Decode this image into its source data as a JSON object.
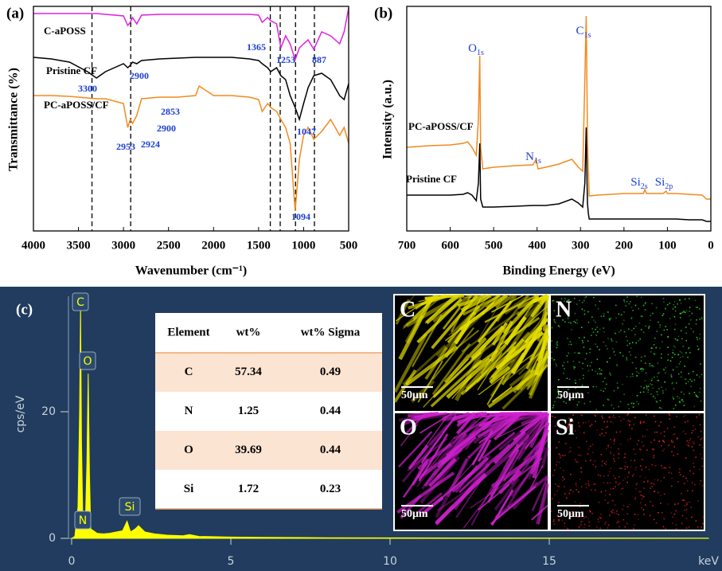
{
  "chart_data": [
    {
      "type": "line",
      "panel": "(a)",
      "xlabel": "Wavenumber (cm⁻¹)",
      "ylabel": "Transmittance (%)",
      "xlim": [
        4000,
        500
      ],
      "xticks": [
        4000,
        3500,
        3000,
        2500,
        2000,
        1500,
        1000,
        500
      ],
      "ylim": [
        0,
        282
      ],
      "vlines": [
        3350,
        2920,
        1370,
        1260,
        1090,
        880
      ],
      "series": [
        {
          "name": "C-aPOSS",
          "color": "#e020e0",
          "x": [
            4000,
            3800,
            3600,
            3400,
            3300,
            3200,
            3000,
            2953,
            2924,
            2900,
            2853,
            2800,
            2600,
            2400,
            2200,
            2160,
            2000,
            1800,
            1600,
            1500,
            1460,
            1400,
            1365,
            1300,
            1253,
            1200,
            1150,
            1094,
            1047,
            1000,
            950,
            887,
            800,
            700,
            600,
            550,
            500
          ],
          "values": [
            273,
            273,
            273,
            273,
            273,
            272,
            270,
            258,
            262,
            268,
            260,
            271,
            272,
            272,
            272,
            272,
            272,
            272,
            272,
            271,
            262,
            268,
            264,
            260,
            230,
            245,
            235,
            215,
            230,
            235,
            240,
            228,
            250,
            245,
            235,
            250,
            280
          ]
        },
        {
          "name": "Pristine CF",
          "color": "#000000",
          "x": [
            4000,
            3800,
            3600,
            3400,
            3300,
            3200,
            3000,
            2953,
            2924,
            2900,
            2853,
            2800,
            2600,
            2400,
            2200,
            2160,
            2000,
            1800,
            1600,
            1500,
            1460,
            1400,
            1365,
            1300,
            1253,
            1200,
            1150,
            1094,
            1047,
            1000,
            950,
            887,
            800,
            700,
            600,
            550,
            500
          ],
          "values": [
            218,
            216,
            212,
            200,
            192,
            200,
            210,
            205,
            208,
            212,
            210,
            214,
            216,
            217,
            218,
            218,
            218,
            218,
            216,
            214,
            210,
            205,
            200,
            205,
            195,
            190,
            170,
            155,
            140,
            160,
            180,
            195,
            198,
            190,
            170,
            165,
            185
          ]
        },
        {
          "name": "PC-aPOSS/CF",
          "color": "#f28a1e",
          "x": [
            4000,
            3800,
            3600,
            3400,
            3300,
            3200,
            3000,
            2953,
            2924,
            2900,
            2853,
            2800,
            2600,
            2400,
            2200,
            2160,
            2000,
            1800,
            1600,
            1500,
            1460,
            1400,
            1365,
            1300,
            1253,
            1200,
            1150,
            1094,
            1047,
            1000,
            950,
            887,
            800,
            700,
            600,
            550,
            500
          ],
          "values": [
            170,
            170,
            169,
            167,
            166,
            166,
            160,
            130,
            140,
            135,
            145,
            166,
            168,
            168,
            170,
            182,
            170,
            170,
            168,
            165,
            150,
            160,
            155,
            150,
            140,
            130,
            110,
            25,
            90,
            120,
            130,
            115,
            125,
            140,
            120,
            130,
            110
          ]
        }
      ],
      "annotations": [
        "3300",
        "2900",
        "1365",
        "1253",
        "887",
        "1047",
        "2853",
        "2900",
        "2953",
        "2924",
        "1094"
      ]
    },
    {
      "type": "line",
      "panel": "(b)",
      "xlabel": "Binding Energy (eV)",
      "ylabel": "Intensity (a.u.)",
      "xlim": [
        700,
        0
      ],
      "xticks": [
        700,
        600,
        500,
        400,
        300,
        200,
        100,
        0
      ],
      "ylim": [
        0,
        282
      ],
      "series": [
        {
          "name": "PC-aPOSS/CF",
          "color": "#f28a1e",
          "x": [
            700,
            650,
            600,
            570,
            560,
            550,
            540,
            535,
            532,
            530,
            525,
            500,
            450,
            410,
            402,
            398,
            380,
            350,
            320,
            305,
            295,
            290,
            287,
            285,
            284,
            282,
            280,
            260,
            200,
            155,
            152,
            148,
            110,
            103,
            100,
            80,
            50,
            20,
            10,
            0
          ],
          "values": [
            105,
            107,
            108,
            110,
            112,
            105,
            95,
            140,
            220,
            105,
            78,
            80,
            82,
            83,
            90,
            78,
            80,
            84,
            90,
            80,
            75,
            190,
            270,
            170,
            110,
            78,
            44,
            45,
            47,
            47,
            52,
            47,
            47,
            50,
            47,
            47,
            46,
            45,
            40,
            40
          ]
        },
        {
          "name": "Pristine CF",
          "color": "#000000",
          "x": [
            700,
            650,
            600,
            570,
            560,
            550,
            540,
            535,
            532,
            530,
            525,
            500,
            450,
            410,
            402,
            398,
            380,
            350,
            320,
            305,
            295,
            290,
            287,
            285,
            284,
            282,
            280,
            260,
            200,
            155,
            152,
            148,
            110,
            103,
            100,
            80,
            50,
            20,
            10,
            0
          ],
          "values": [
            45,
            45,
            45,
            46,
            48,
            45,
            38,
            60,
            110,
            40,
            30,
            30,
            31,
            32,
            32,
            32,
            32,
            34,
            40,
            35,
            30,
            60,
            130,
            60,
            35,
            22,
            15,
            15,
            15,
            15,
            15,
            15,
            15,
            15,
            15,
            15,
            14,
            14,
            12,
            12
          ]
        }
      ],
      "peak_labels": [
        {
          "element": "O",
          "level": "1s"
        },
        {
          "element": "N",
          "level": "1s"
        },
        {
          "element": "C",
          "level": "1s"
        },
        {
          "element": "Si",
          "level": "2s"
        },
        {
          "element": "Si",
          "level": "2p"
        }
      ]
    },
    {
      "type": "area",
      "panel": "(c)",
      "xlabel": "keV",
      "ylabel": "cps/eV",
      "xlim": [
        0,
        20
      ],
      "xticks": [
        0,
        5,
        10,
        15
      ],
      "ylim": [
        0,
        38
      ],
      "yticks": [
        0,
        20
      ],
      "series": [
        {
          "color": "#ffff00",
          "x": [
            0,
            0.1,
            0.2,
            0.25,
            0.28,
            0.31,
            0.35,
            0.39,
            0.43,
            0.48,
            0.52,
            0.56,
            0.6,
            0.8,
            1.0,
            1.2,
            1.4,
            1.6,
            1.74,
            1.85,
            2.0,
            2.1,
            2.3,
            2.6,
            3.0,
            3.5,
            3.7,
            4,
            5,
            6,
            8,
            10,
            12,
            15,
            20
          ],
          "values": [
            0,
            0.3,
            5,
            20,
            37,
            15,
            3,
            3.5,
            2,
            12,
            26,
            10,
            1.5,
            0.8,
            0.7,
            0.8,
            1.0,
            1.2,
            2.7,
            1.0,
            1.5,
            2.0,
            1.0,
            0.7,
            0.5,
            0.4,
            0.6,
            0.3,
            0.2,
            0.15,
            0.1,
            0.08,
            0.06,
            0.05,
            0.03
          ]
        }
      ],
      "peak_labels": [
        "C",
        "O",
        "N",
        "Si"
      ]
    }
  ],
  "table": {
    "header": [
      "Element",
      "wt%",
      "wt% Sigma"
    ],
    "rows": [
      [
        "C",
        "57.34",
        "0.49"
      ],
      [
        "N",
        "1.25",
        "0.44"
      ],
      [
        "O",
        "39.69",
        "0.44"
      ],
      [
        "Si",
        "1.72",
        "0.23"
      ]
    ]
  },
  "maps": [
    {
      "element": "C",
      "scale": "50μm"
    },
    {
      "element": "N",
      "scale": "50μm"
    },
    {
      "element": "O",
      "scale": "50μm"
    },
    {
      "element": "Si",
      "scale": "50μm"
    }
  ]
}
